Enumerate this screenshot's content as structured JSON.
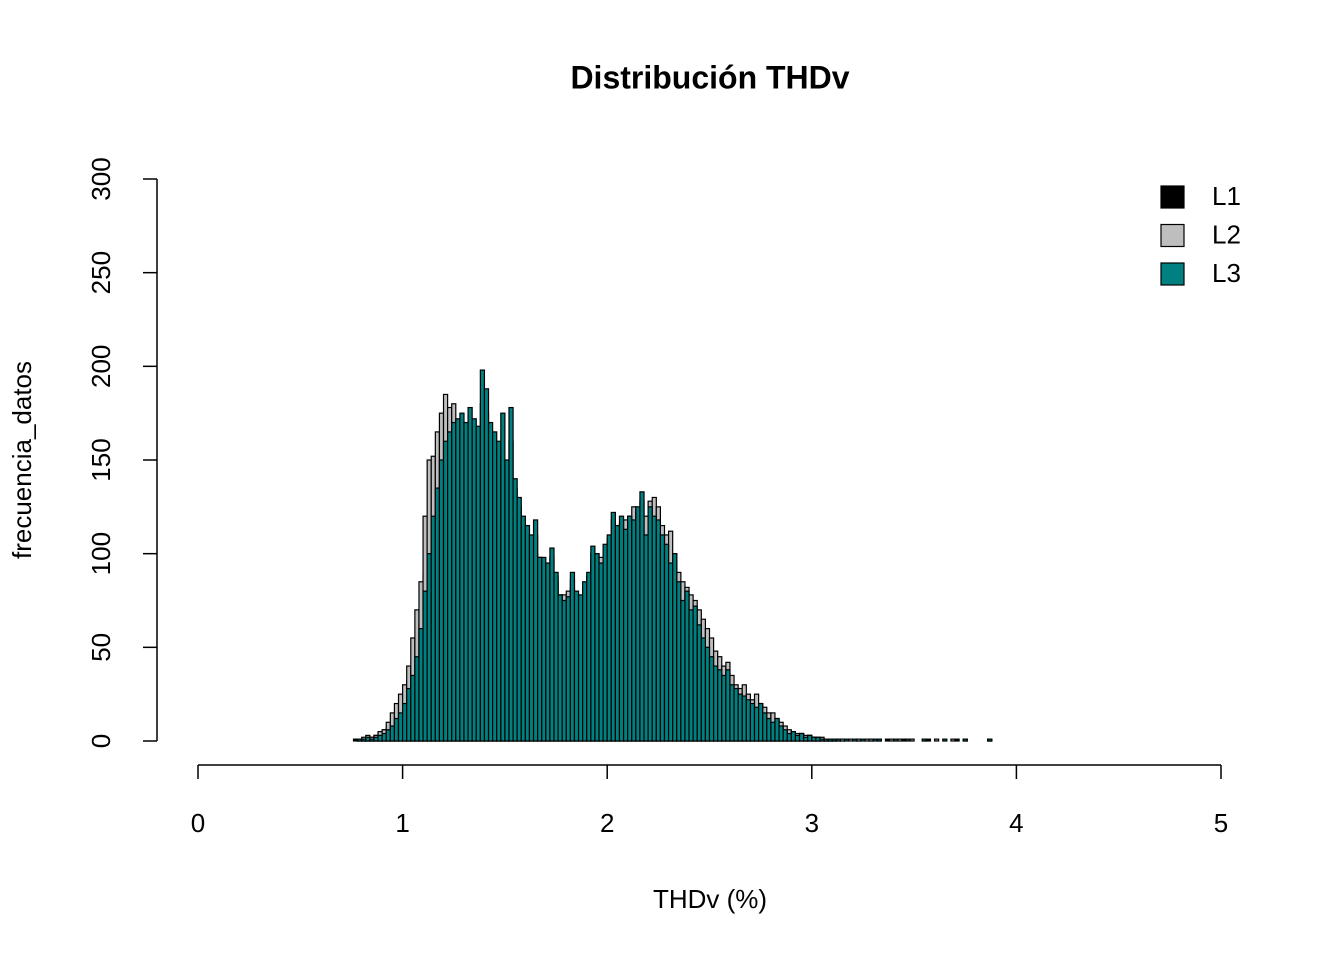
{
  "chart_data": {
    "type": "histogram",
    "title": "Distribución THDv",
    "x_label": "THDv (%)",
    "y_label": "frecuencia_datos",
    "bins": [
      0.76,
      0.78,
      0.8,
      0.82,
      0.84,
      0.86,
      0.88,
      0.9,
      0.92,
      0.94,
      0.96,
      0.98,
      1,
      1.02,
      1.04,
      1.06,
      1.08,
      1.1,
      1.12,
      1.14,
      1.16,
      1.18,
      1.2,
      1.22,
      1.24,
      1.26,
      1.28,
      1.3,
      1.32,
      1.34,
      1.36,
      1.38,
      1.4,
      1.42,
      1.44,
      1.46,
      1.48,
      1.5,
      1.52,
      1.54,
      1.56,
      1.58,
      1.6,
      1.62,
      1.64,
      1.66,
      1.68,
      1.7,
      1.72,
      1.74,
      1.76,
      1.78,
      1.8,
      1.82,
      1.84,
      1.86,
      1.88,
      1.9,
      1.92,
      1.94,
      1.96,
      1.98,
      2,
      2.02,
      2.04,
      2.06,
      2.08,
      2.1,
      2.12,
      2.14,
      2.16,
      2.18,
      2.2,
      2.22,
      2.24,
      2.26,
      2.28,
      2.3,
      2.32,
      2.34,
      2.36,
      2.38,
      2.4,
      2.42,
      2.44,
      2.46,
      2.48,
      2.5,
      2.52,
      2.54,
      2.56,
      2.58,
      2.6,
      2.62,
      2.64,
      2.66,
      2.68,
      2.7,
      2.72,
      2.74,
      2.76,
      2.78,
      2.8,
      2.82,
      2.84,
      2.86,
      2.88,
      2.9,
      2.92,
      2.94,
      2.96,
      2.98,
      3,
      3.02,
      3.04,
      3.06,
      3.08,
      3.1,
      3.12,
      3.14,
      3.16,
      3.18,
      3.2,
      3.22,
      3.24,
      3.26,
      3.28,
      3.3,
      3.32,
      3.34,
      3.36,
      3.38,
      3.4,
      3.42,
      3.44,
      3.46,
      3.48,
      3.5,
      3.52,
      3.54,
      3.56,
      3.58,
      3.6,
      3.62,
      3.64,
      3.66,
      3.68,
      3.7,
      3.72,
      3.74,
      3.76,
      3.78,
      3.8,
      3.82,
      3.84,
      3.86,
      3.88
    ],
    "series": [
      {
        "name": "L1",
        "color": "#000000",
        "values": [
          1,
          1,
          1,
          2,
          2,
          3,
          4,
          6,
          7,
          10,
          14,
          18,
          25,
          32,
          40,
          52,
          70,
          90,
          110,
          128,
          140,
          152,
          158,
          160,
          165,
          168,
          170,
          168,
          170,
          168,
          165,
          180,
          175,
          165,
          160,
          155,
          160,
          148,
          160,
          135,
          125,
          118,
          112,
          108,
          110,
          96,
          95,
          92,
          98,
          88,
          76,
          74,
          76,
          86,
          78,
          76,
          82,
          88,
          100,
          98,
          94,
          102,
          108,
          118,
          112,
          116,
          112,
          118,
          116,
          122,
          128,
          110,
          122,
          118,
          116,
          108,
          102,
          95,
          96,
          84,
          74,
          78,
          68,
          70,
          60,
          54,
          50,
          44,
          40,
          37,
          34,
          36,
          30,
          27,
          25,
          24,
          22,
          20,
          18,
          19,
          15,
          12,
          11,
          11,
          8,
          6,
          5,
          4,
          3,
          4,
          2,
          3,
          2,
          1,
          1,
          1,
          1,
          1,
          0,
          1,
          0,
          0,
          0,
          1,
          0,
          0,
          1,
          0,
          0,
          0,
          1,
          0,
          0,
          0,
          1,
          0,
          0,
          0,
          0,
          0,
          1,
          0,
          0,
          0,
          0,
          0,
          0,
          1,
          0,
          0,
          0,
          0,
          0,
          0,
          0,
          1
        ]
      },
      {
        "name": "L2",
        "color": "#bebebe",
        "values": [
          0,
          1,
          2,
          3,
          2,
          3,
          5,
          6,
          10,
          15,
          20,
          25,
          30,
          40,
          55,
          70,
          85,
          120,
          150,
          152,
          165,
          175,
          185,
          178,
          180,
          170,
          168,
          165,
          160,
          160,
          155,
          150,
          148,
          145,
          140,
          135,
          130,
          128,
          125,
          120,
          118,
          115,
          110,
          108,
          100,
          98,
          95,
          92,
          90,
          85,
          78,
          78,
          80,
          82,
          75,
          70,
          78,
          85,
          95,
          100,
          98,
          102,
          105,
          110,
          115,
          112,
          118,
          120,
          125,
          122,
          115,
          120,
          128,
          130,
          125,
          115,
          110,
          112,
          100,
          90,
          85,
          82,
          78,
          75,
          70,
          65,
          60,
          55,
          48,
          45,
          40,
          42,
          35,
          30,
          28,
          30,
          25,
          22,
          25,
          20,
          18,
          15,
          15,
          12,
          10,
          8,
          6,
          5,
          4,
          4,
          3,
          3,
          2,
          2,
          2,
          1,
          1,
          1,
          1,
          1,
          0,
          1,
          0,
          1,
          0,
          1,
          1,
          0,
          1,
          0,
          0,
          1,
          0,
          1,
          0,
          0,
          1,
          0,
          0,
          1,
          0,
          0,
          1,
          0,
          0,
          0,
          1,
          0,
          0,
          1,
          0,
          0,
          0,
          0,
          0,
          1
        ]
      },
      {
        "name": "L3",
        "color": "#008080",
        "values": [
          0,
          1,
          1,
          2,
          1,
          2,
          3,
          4,
          6,
          8,
          12,
          15,
          20,
          28,
          35,
          45,
          60,
          80,
          100,
          120,
          135,
          150,
          160,
          165,
          170,
          172,
          175,
          170,
          178,
          172,
          168,
          198,
          188,
          170,
          165,
          160,
          175,
          150,
          178,
          140,
          130,
          120,
          115,
          110,
          118,
          98,
          98,
          95,
          103,
          90,
          78,
          75,
          77,
          90,
          80,
          78,
          85,
          90,
          104,
          100,
          95,
          105,
          110,
          122,
          115,
          120,
          113,
          120,
          118,
          125,
          133,
          110,
          125,
          120,
          118,
          110,
          105,
          95,
          100,
          85,
          75,
          80,
          70,
          72,
          62,
          55,
          50,
          45,
          40,
          38,
          35,
          38,
          30,
          28,
          25,
          24,
          22,
          20,
          18,
          20,
          15,
          12,
          10,
          12,
          8,
          6,
          4,
          5,
          3,
          4,
          2,
          3,
          2,
          2,
          1,
          1,
          1,
          1,
          1,
          0,
          1,
          0,
          1,
          0,
          1,
          0,
          0,
          1,
          1,
          0,
          0,
          0,
          1,
          0,
          0,
          1,
          0,
          0,
          0,
          1,
          0,
          0,
          0,
          0,
          1,
          0,
          0,
          0,
          0,
          1,
          0,
          0,
          0,
          0,
          0,
          1
        ]
      }
    ],
    "xlim": [
      0,
      5
    ],
    "xticks": [
      0,
      1,
      2,
      3,
      4,
      5
    ],
    "ylim": [
      0,
      300
    ],
    "yticks": [
      0,
      50,
      100,
      150,
      200,
      250,
      300
    ],
    "legend": "topright"
  }
}
